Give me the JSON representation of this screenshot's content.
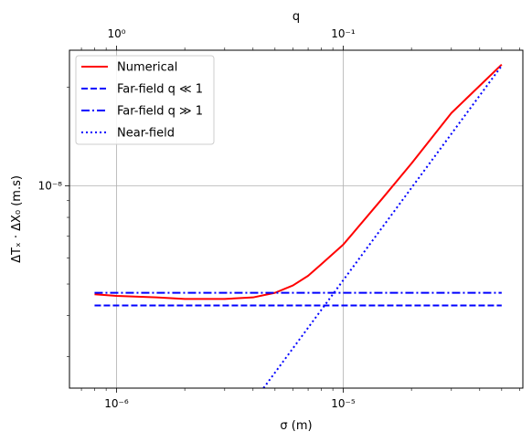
{
  "chart_data": {
    "type": "line",
    "xscale": "log",
    "yscale": "log",
    "grid": true,
    "legend_position": "top-left",
    "xlabel": "σ (m)",
    "ylabel": "ΔTₓ · ΔX₀ (m.s)",
    "top_xlabel": "q",
    "xlim": [
      6.2e-07,
      6.2e-05
    ],
    "ylim": [
      2.4e-09,
      2.6e-08
    ],
    "x_ticks": [
      {
        "value": 1e-06,
        "label": "10⁻⁶"
      },
      {
        "value": 1e-05,
        "label": "10⁻⁵"
      }
    ],
    "y_ticks": [
      {
        "value": 1e-08,
        "label": "10⁻⁸"
      }
    ],
    "top_ticks": [
      {
        "value": 1e-06,
        "label": "10⁰"
      },
      {
        "value": 1e-05,
        "label": "10⁻¹"
      }
    ],
    "series": [
      {
        "name": "Numerical",
        "color": "#ff0000",
        "style": "solid",
        "x": [
          8e-07,
          1e-06,
          1.5e-06,
          2e-06,
          3e-06,
          4e-06,
          5e-06,
          6e-06,
          7e-06,
          8e-06,
          1e-05,
          1.5e-05,
          2e-05,
          3e-05,
          5e-05
        ],
        "y": [
          4.65e-09,
          4.6e-09,
          4.55e-09,
          4.5e-09,
          4.5e-09,
          4.55e-09,
          4.7e-09,
          4.95e-09,
          5.3e-09,
          5.75e-09,
          6.6e-09,
          9.2e-09,
          1.17e-08,
          1.67e-08,
          2.35e-08
        ]
      },
      {
        "name": "Far-field q ≪ 1",
        "color": "#0000ff",
        "style": "dashed",
        "x": [
          8e-07,
          5e-05
        ],
        "y": [
          4.3e-09,
          4.3e-09
        ]
      },
      {
        "name": "Far-field q ≫ 1",
        "color": "#0000ff",
        "style": "dashdot",
        "x": [
          8e-07,
          5e-05
        ],
        "y": [
          4.7e-09,
          4.7e-09
        ]
      },
      {
        "name": "Near-field",
        "color": "#0000ff",
        "style": "dotted",
        "x": [
          4.45e-06,
          5e-05
        ],
        "y": [
          2.4e-09,
          2.33e-08
        ]
      }
    ]
  }
}
